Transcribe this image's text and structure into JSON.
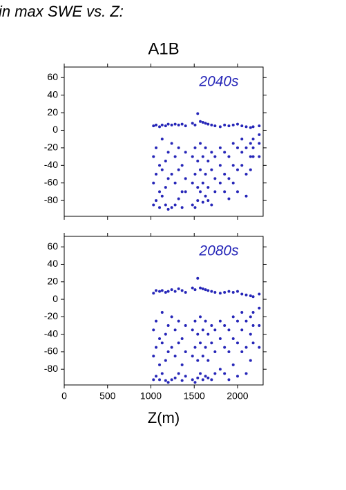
{
  "page_title": "in max SWE vs. Z:",
  "chart_data": [
    {
      "type": "scatter",
      "title": "A1B",
      "annotation": "2040s",
      "color": "#2626b8",
      "xlim": [
        0,
        2295
      ],
      "ylim": [
        -98,
        72
      ],
      "yticks": [
        60,
        40,
        20,
        0,
        -20,
        -40,
        -60,
        -80
      ],
      "x": [
        1030,
        1030,
        1030,
        1030,
        1060,
        1060,
        1060,
        1060,
        1100,
        1100,
        1100,
        1100,
        1130,
        1130,
        1130,
        1130,
        1170,
        1170,
        1170,
        1170,
        1200,
        1200,
        1200,
        1200,
        1240,
        1240,
        1240,
        1240,
        1280,
        1280,
        1280,
        1280,
        1320,
        1320,
        1320,
        1320,
        1360,
        1360,
        1360,
        1360,
        1400,
        1400,
        1400,
        1400,
        1480,
        1480,
        1480,
        1480,
        1510,
        1510,
        1510,
        1510,
        1540,
        1540,
        1540,
        1540,
        1570,
        1570,
        1570,
        1570,
        1600,
        1600,
        1600,
        1600,
        1630,
        1630,
        1630,
        1630,
        1660,
        1660,
        1660,
        1660,
        1700,
        1700,
        1700,
        1700,
        1740,
        1740,
        1740,
        1740,
        1800,
        1800,
        1800,
        1800,
        1850,
        1850,
        1850,
        1850,
        1900,
        1900,
        1900,
        1900,
        1950,
        1950,
        1950,
        1950,
        2000,
        2000,
        2000,
        2000,
        2050,
        2050,
        2050,
        2050,
        2100,
        2100,
        2100,
        2100,
        2150,
        2150,
        2150,
        2150,
        2180,
        2180,
        2180,
        2180,
        2250,
        2250,
        2250,
        2250
      ],
      "y": [
        5,
        -30,
        -60,
        -85,
        6,
        -20,
        -50,
        -80,
        4,
        -40,
        -70,
        -88,
        6,
        -10,
        -45,
        -75,
        5,
        -35,
        -65,
        -85,
        7,
        -25,
        -55,
        -90,
        6,
        -15,
        -50,
        -88,
        7,
        -30,
        -60,
        -85,
        6,
        -20,
        -45,
        -78,
        7,
        -40,
        -70,
        -88,
        5,
        -25,
        -55,
        -70,
        8,
        -30,
        -60,
        -85,
        6,
        -20,
        -50,
        -88,
        19,
        -35,
        -65,
        -80,
        10,
        -15,
        -45,
        -70,
        9,
        -30,
        -60,
        -82,
        8,
        -20,
        -50,
        -75,
        7,
        -35,
        -65,
        -80,
        6,
        -25,
        -45,
        -85,
        5,
        -30,
        -55,
        -70,
        4,
        -20,
        -40,
        -60,
        6,
        -25,
        -50,
        -70,
        5,
        -30,
        -55,
        -78,
        6,
        -15,
        -40,
        -60,
        7,
        -20,
        -45,
        -70,
        5,
        -10,
        -25,
        -40,
        4,
        -20,
        -50,
        -75,
        3,
        -15,
        -30,
        -45,
        4,
        -10,
        -20,
        -30,
        5,
        -5,
        -15,
        -30
      ]
    },
    {
      "type": "scatter",
      "annotation": "2080s",
      "xlabel": "Z(m)",
      "color": "#2626b8",
      "xlim": [
        0,
        2295
      ],
      "ylim": [
        -98,
        72
      ],
      "xticks": [
        0,
        500,
        1000,
        1500,
        2000
      ],
      "yticks": [
        60,
        40,
        20,
        0,
        -20,
        -40,
        -60,
        -80
      ],
      "x": [
        1030,
        1030,
        1030,
        1030,
        1060,
        1060,
        1060,
        1060,
        1100,
        1100,
        1100,
        1100,
        1130,
        1130,
        1130,
        1130,
        1170,
        1170,
        1170,
        1170,
        1200,
        1200,
        1200,
        1200,
        1240,
        1240,
        1240,
        1240,
        1280,
        1280,
        1280,
        1280,
        1320,
        1320,
        1320,
        1320,
        1360,
        1360,
        1360,
        1360,
        1400,
        1400,
        1400,
        1400,
        1480,
        1480,
        1480,
        1480,
        1510,
        1510,
        1510,
        1510,
        1540,
        1540,
        1540,
        1540,
        1570,
        1570,
        1570,
        1570,
        1600,
        1600,
        1600,
        1600,
        1630,
        1630,
        1630,
        1630,
        1660,
        1660,
        1660,
        1660,
        1700,
        1700,
        1700,
        1700,
        1740,
        1740,
        1740,
        1740,
        1800,
        1800,
        1800,
        1800,
        1850,
        1850,
        1850,
        1850,
        1900,
        1900,
        1900,
        1900,
        1950,
        1950,
        1950,
        1950,
        2000,
        2000,
        2000,
        2000,
        2050,
        2050,
        2050,
        2050,
        2100,
        2100,
        2100,
        2100,
        2150,
        2150,
        2150,
        2150,
        2180,
        2180,
        2180,
        2180,
        2250,
        2250,
        2250,
        2250
      ],
      "y": [
        7,
        -35,
        -65,
        -92,
        10,
        -25,
        -55,
        -88,
        9,
        -45,
        -75,
        -92,
        10,
        -15,
        -50,
        -85,
        8,
        -40,
        -70,
        -93,
        9,
        -30,
        -60,
        -95,
        11,
        -20,
        -55,
        -92,
        9,
        -35,
        -65,
        -90,
        12,
        -25,
        -50,
        -85,
        10,
        -45,
        -75,
        -93,
        8,
        -30,
        -60,
        -88,
        13,
        -35,
        -65,
        -92,
        11,
        -25,
        -55,
        -95,
        24,
        -40,
        -70,
        -90,
        13,
        -20,
        -50,
        -85,
        12,
        -35,
        -65,
        -92,
        11,
        -25,
        -55,
        -88,
        10,
        -40,
        -70,
        -90,
        9,
        -30,
        -50,
        -92,
        8,
        -35,
        -60,
        -85,
        7,
        -25,
        -45,
        -80,
        8,
        -30,
        -55,
        -85,
        9,
        -35,
        -60,
        -92,
        8,
        -20,
        -45,
        -75,
        9,
        -25,
        -50,
        -88,
        6,
        -15,
        -35,
        -60,
        5,
        -25,
        -55,
        -85,
        4,
        -20,
        -40,
        -70,
        3,
        -15,
        -30,
        -50,
        6,
        -10,
        -30,
        -55
      ]
    }
  ]
}
